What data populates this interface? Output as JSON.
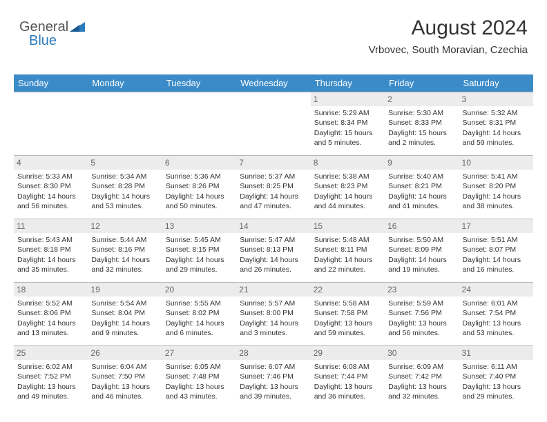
{
  "logo": {
    "text_general": "General",
    "text_blue": "Blue"
  },
  "header": {
    "month_title": "August 2024",
    "location": "Vrbovec, South Moravian, Czechia"
  },
  "colors": {
    "header_bg": "#3b8bc8",
    "header_text": "#ffffff",
    "daynum_bg": "#ececec",
    "daynum_text": "#666666",
    "border": "#b8b8b8",
    "body_text": "#333333",
    "logo_blue": "#2b7bbf"
  },
  "weekdays": [
    "Sunday",
    "Monday",
    "Tuesday",
    "Wednesday",
    "Thursday",
    "Friday",
    "Saturday"
  ],
  "weeks": [
    [
      null,
      null,
      null,
      null,
      {
        "n": "1",
        "sr": "Sunrise: 5:29 AM",
        "ss": "Sunset: 8:34 PM",
        "d1": "Daylight: 15 hours",
        "d2": "and 5 minutes."
      },
      {
        "n": "2",
        "sr": "Sunrise: 5:30 AM",
        "ss": "Sunset: 8:33 PM",
        "d1": "Daylight: 15 hours",
        "d2": "and 2 minutes."
      },
      {
        "n": "3",
        "sr": "Sunrise: 5:32 AM",
        "ss": "Sunset: 8:31 PM",
        "d1": "Daylight: 14 hours",
        "d2": "and 59 minutes."
      }
    ],
    [
      {
        "n": "4",
        "sr": "Sunrise: 5:33 AM",
        "ss": "Sunset: 8:30 PM",
        "d1": "Daylight: 14 hours",
        "d2": "and 56 minutes."
      },
      {
        "n": "5",
        "sr": "Sunrise: 5:34 AM",
        "ss": "Sunset: 8:28 PM",
        "d1": "Daylight: 14 hours",
        "d2": "and 53 minutes."
      },
      {
        "n": "6",
        "sr": "Sunrise: 5:36 AM",
        "ss": "Sunset: 8:26 PM",
        "d1": "Daylight: 14 hours",
        "d2": "and 50 minutes."
      },
      {
        "n": "7",
        "sr": "Sunrise: 5:37 AM",
        "ss": "Sunset: 8:25 PM",
        "d1": "Daylight: 14 hours",
        "d2": "and 47 minutes."
      },
      {
        "n": "8",
        "sr": "Sunrise: 5:38 AM",
        "ss": "Sunset: 8:23 PM",
        "d1": "Daylight: 14 hours",
        "d2": "and 44 minutes."
      },
      {
        "n": "9",
        "sr": "Sunrise: 5:40 AM",
        "ss": "Sunset: 8:21 PM",
        "d1": "Daylight: 14 hours",
        "d2": "and 41 minutes."
      },
      {
        "n": "10",
        "sr": "Sunrise: 5:41 AM",
        "ss": "Sunset: 8:20 PM",
        "d1": "Daylight: 14 hours",
        "d2": "and 38 minutes."
      }
    ],
    [
      {
        "n": "11",
        "sr": "Sunrise: 5:43 AM",
        "ss": "Sunset: 8:18 PM",
        "d1": "Daylight: 14 hours",
        "d2": "and 35 minutes."
      },
      {
        "n": "12",
        "sr": "Sunrise: 5:44 AM",
        "ss": "Sunset: 8:16 PM",
        "d1": "Daylight: 14 hours",
        "d2": "and 32 minutes."
      },
      {
        "n": "13",
        "sr": "Sunrise: 5:45 AM",
        "ss": "Sunset: 8:15 PM",
        "d1": "Daylight: 14 hours",
        "d2": "and 29 minutes."
      },
      {
        "n": "14",
        "sr": "Sunrise: 5:47 AM",
        "ss": "Sunset: 8:13 PM",
        "d1": "Daylight: 14 hours",
        "d2": "and 26 minutes."
      },
      {
        "n": "15",
        "sr": "Sunrise: 5:48 AM",
        "ss": "Sunset: 8:11 PM",
        "d1": "Daylight: 14 hours",
        "d2": "and 22 minutes."
      },
      {
        "n": "16",
        "sr": "Sunrise: 5:50 AM",
        "ss": "Sunset: 8:09 PM",
        "d1": "Daylight: 14 hours",
        "d2": "and 19 minutes."
      },
      {
        "n": "17",
        "sr": "Sunrise: 5:51 AM",
        "ss": "Sunset: 8:07 PM",
        "d1": "Daylight: 14 hours",
        "d2": "and 16 minutes."
      }
    ],
    [
      {
        "n": "18",
        "sr": "Sunrise: 5:52 AM",
        "ss": "Sunset: 8:06 PM",
        "d1": "Daylight: 14 hours",
        "d2": "and 13 minutes."
      },
      {
        "n": "19",
        "sr": "Sunrise: 5:54 AM",
        "ss": "Sunset: 8:04 PM",
        "d1": "Daylight: 14 hours",
        "d2": "and 9 minutes."
      },
      {
        "n": "20",
        "sr": "Sunrise: 5:55 AM",
        "ss": "Sunset: 8:02 PM",
        "d1": "Daylight: 14 hours",
        "d2": "and 6 minutes."
      },
      {
        "n": "21",
        "sr": "Sunrise: 5:57 AM",
        "ss": "Sunset: 8:00 PM",
        "d1": "Daylight: 14 hours",
        "d2": "and 3 minutes."
      },
      {
        "n": "22",
        "sr": "Sunrise: 5:58 AM",
        "ss": "Sunset: 7:58 PM",
        "d1": "Daylight: 13 hours",
        "d2": "and 59 minutes."
      },
      {
        "n": "23",
        "sr": "Sunrise: 5:59 AM",
        "ss": "Sunset: 7:56 PM",
        "d1": "Daylight: 13 hours",
        "d2": "and 56 minutes."
      },
      {
        "n": "24",
        "sr": "Sunrise: 6:01 AM",
        "ss": "Sunset: 7:54 PM",
        "d1": "Daylight: 13 hours",
        "d2": "and 53 minutes."
      }
    ],
    [
      {
        "n": "25",
        "sr": "Sunrise: 6:02 AM",
        "ss": "Sunset: 7:52 PM",
        "d1": "Daylight: 13 hours",
        "d2": "and 49 minutes."
      },
      {
        "n": "26",
        "sr": "Sunrise: 6:04 AM",
        "ss": "Sunset: 7:50 PM",
        "d1": "Daylight: 13 hours",
        "d2": "and 46 minutes."
      },
      {
        "n": "27",
        "sr": "Sunrise: 6:05 AM",
        "ss": "Sunset: 7:48 PM",
        "d1": "Daylight: 13 hours",
        "d2": "and 43 minutes."
      },
      {
        "n": "28",
        "sr": "Sunrise: 6:07 AM",
        "ss": "Sunset: 7:46 PM",
        "d1": "Daylight: 13 hours",
        "d2": "and 39 minutes."
      },
      {
        "n": "29",
        "sr": "Sunrise: 6:08 AM",
        "ss": "Sunset: 7:44 PM",
        "d1": "Daylight: 13 hours",
        "d2": "and 36 minutes."
      },
      {
        "n": "30",
        "sr": "Sunrise: 6:09 AM",
        "ss": "Sunset: 7:42 PM",
        "d1": "Daylight: 13 hours",
        "d2": "and 32 minutes."
      },
      {
        "n": "31",
        "sr": "Sunrise: 6:11 AM",
        "ss": "Sunset: 7:40 PM",
        "d1": "Daylight: 13 hours",
        "d2": "and 29 minutes."
      }
    ]
  ]
}
